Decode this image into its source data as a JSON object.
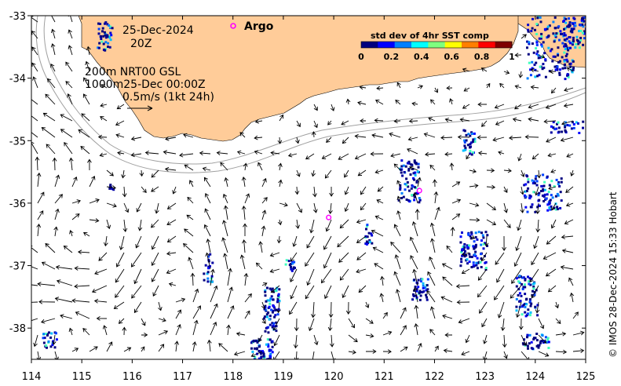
{
  "map": {
    "date": "25-Dec-2024",
    "hour": "20Z",
    "product_line1": "200m  NRT00 GSL",
    "product_line2": "1000m25-Dec 00:00Z",
    "scale_label": "0.5m/s (1kt 24h)",
    "argo_label": "Argo",
    "colorbar": {
      "title": "std dev of 4hr SST comp",
      "ticks": [
        "0",
        "0.2",
        "0.4",
        "0.6",
        "0.8",
        "1"
      ],
      "colors": [
        "#00007f",
        "#0000ff",
        "#007fff",
        "#00ffff",
        "#7fff7f",
        "#ffff00",
        "#ff7f00",
        "#ff0000",
        "#7f0000"
      ]
    },
    "x_ticks": [
      "114",
      "115",
      "116",
      "117",
      "118",
      "119",
      "120",
      "121",
      "122",
      "123",
      "124",
      "125"
    ],
    "y_ticks": [
      "-33",
      "-34",
      "-35",
      "-36",
      "-37",
      "-38"
    ],
    "credit": "© IMOS 28-Dec-2024 15:33 Hobart",
    "argo_floats": [
      [
        119.9,
        -36.23
      ],
      [
        121.7,
        -35.8
      ]
    ],
    "colors": {
      "land": "#ffcc99",
      "argo": "#ff00ff",
      "arrows": "#000000"
    }
  }
}
